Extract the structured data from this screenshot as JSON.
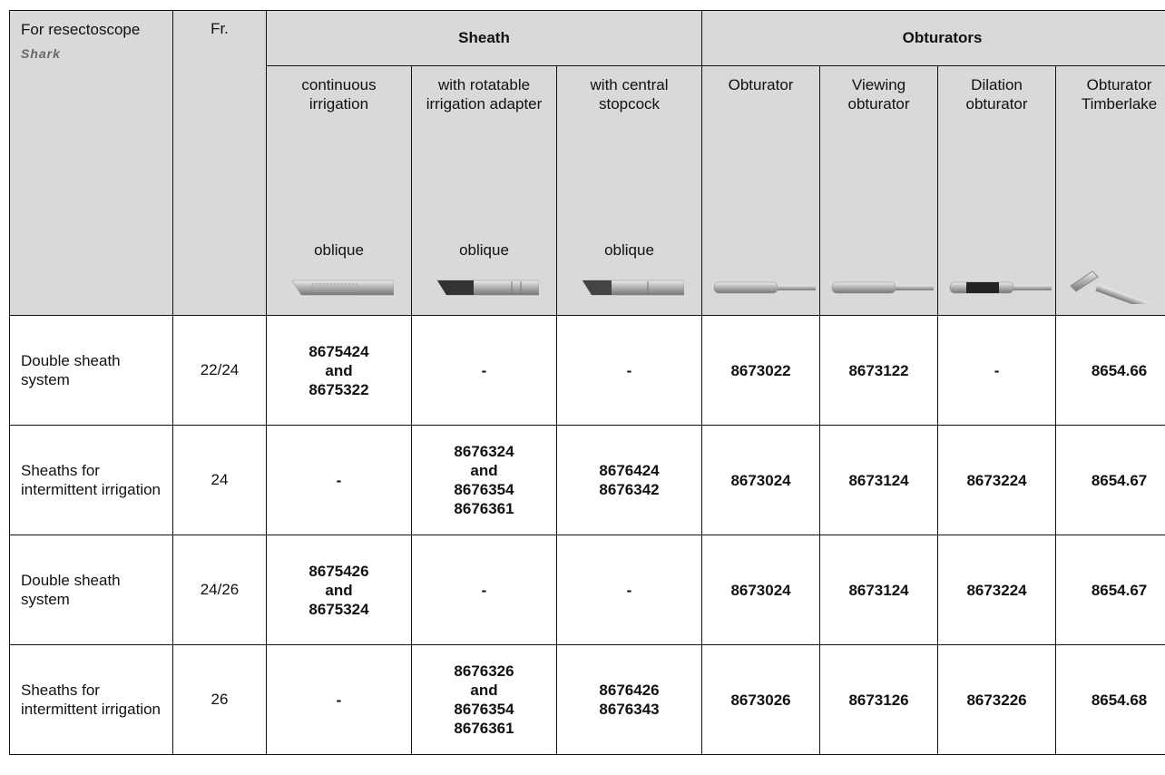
{
  "header": {
    "for": "For resectoscope",
    "logo": "Shark",
    "fr": "Fr.",
    "sheath": "Sheath",
    "obturators": "Obturators",
    "sheath_columns": [
      {
        "label": "continuous irrigation",
        "tip": "oblique"
      },
      {
        "label": "with rotatable irrigation adapter",
        "tip": "oblique"
      },
      {
        "label": "with central stopcock",
        "tip": "oblique"
      }
    ],
    "obturator_columns": [
      "Obturator",
      "Viewing obturator",
      "Dilation obturator",
      "Obturator Timberlake"
    ]
  },
  "rows": [
    {
      "label": "Double sheath system",
      "fr": "22/24",
      "cells": [
        [
          "8675424",
          "and",
          "8675322"
        ],
        [
          "-"
        ],
        [
          "-"
        ],
        [
          "8673022"
        ],
        [
          "8673122"
        ],
        [
          "-"
        ],
        [
          "8654.66"
        ]
      ]
    },
    {
      "label": "Sheaths for intermittent irrigation",
      "fr": "24",
      "cells": [
        [
          "-"
        ],
        [
          "8676324",
          "and",
          "8676354",
          "8676361"
        ],
        [
          "8676424",
          "8676342"
        ],
        [
          "8673024"
        ],
        [
          "8673124"
        ],
        [
          "8673224"
        ],
        [
          "8654.67"
        ]
      ]
    },
    {
      "label": "Double sheath system",
      "fr": "24/26",
      "cells": [
        [
          "8675426",
          "and",
          "8675324"
        ],
        [
          "-"
        ],
        [
          "-"
        ],
        [
          "8673024"
        ],
        [
          "8673124"
        ],
        [
          "8673224"
        ],
        [
          "8654.67"
        ]
      ]
    },
    {
      "label": "Sheaths for intermittent irrigation",
      "fr": "26",
      "cells": [
        [
          "-"
        ],
        [
          "8676326",
          "and",
          "8676354",
          "8676361"
        ],
        [
          "8676426",
          "8676343"
        ],
        [
          "8673026"
        ],
        [
          "8673126"
        ],
        [
          "8673226"
        ],
        [
          "8654.68"
        ]
      ]
    }
  ]
}
